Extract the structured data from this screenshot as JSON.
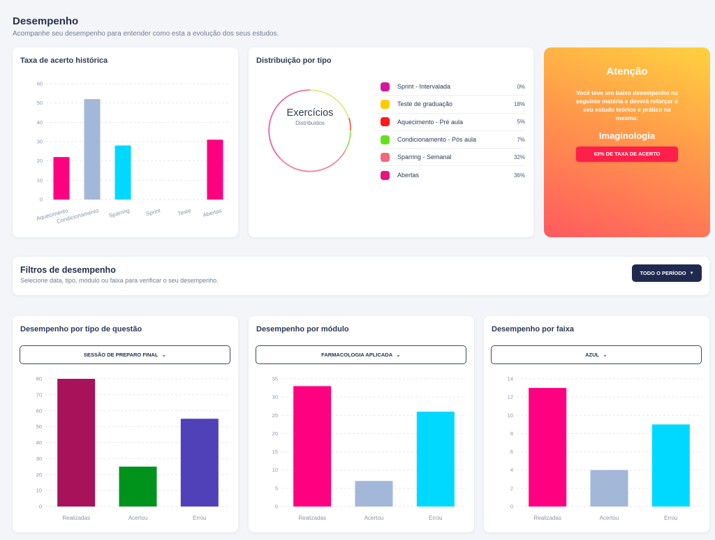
{
  "page": {
    "title": "Desempenho",
    "subtitle": "Acompanhe seu desempenho para entender como esta a evolução dos seus estudos."
  },
  "history": {
    "title": "Taxa de acerto histórica"
  },
  "distribution": {
    "title": "Distribuição por tipo",
    "center_label": "Exercícios",
    "center_sub": "Distribuidos",
    "items": [
      {
        "name": "Sprint - Intervalada",
        "pct": "0%",
        "color": "#d1189e"
      },
      {
        "name": "Teste de graduação",
        "pct": "18%",
        "color": "#ffcc00"
      },
      {
        "name": "Aquecimento - Pré aula",
        "pct": "5%",
        "color": "#ff1a1a"
      },
      {
        "name": "Condicionamento - Pós aula",
        "pct": "7%",
        "color": "#66e01b"
      },
      {
        "name": "Sparring - Semanal",
        "pct": "32%",
        "color": "#f2687c"
      },
      {
        "name": "Abertas",
        "pct": "36%",
        "color": "#e6167f"
      }
    ]
  },
  "alert": {
    "title": "Atenção",
    "text": "Você teve um baixo desempenho na seguinte matéria e deverá reforçar o seu estudo teórico e prático na mesma:",
    "subject": "Imaginologia",
    "badge": "63% DE TAXA DE ACERTO"
  },
  "filters": {
    "title": "Filtros de desempenho",
    "subtitle": "Selecione data, tipo, módulo ou faixa para verificar o seu desempenho.",
    "period_label": "TODO O PERÍODO"
  },
  "by_type": {
    "title": "Desempenho por tipo de questão",
    "select": "SESSÃO DE PREPARO FINAL"
  },
  "by_module": {
    "title": "Desempenho por módulo",
    "select": "FARMACOLOGIA APLICADA"
  },
  "by_belt": {
    "title": "Desempenho por faixa",
    "select": "AZUL"
  },
  "chart_data": [
    {
      "id": "history",
      "type": "bar",
      "title": "Taxa de acerto histórica",
      "categories": [
        "Aquecimento",
        "Condicionamento",
        "Sparring",
        "Sprint",
        "Teste",
        "Abertas"
      ],
      "values": [
        22,
        52,
        28,
        0,
        0,
        31
      ],
      "colors": [
        "#ff0080",
        "#a3b7d8",
        "#00d9ff",
        "#ff0080",
        "#ff0080",
        "#ff0080"
      ],
      "ylim": [
        0,
        60
      ],
      "yticks": [
        0,
        10,
        20,
        30,
        40,
        50,
        60
      ],
      "grid": true
    },
    {
      "id": "by_type",
      "type": "bar",
      "title": "Desempenho por tipo de questão",
      "categories": [
        "Realizadas",
        "Acertou",
        "Errou"
      ],
      "values": [
        80,
        25,
        55
      ],
      "colors": [
        "#a8125a",
        "#00931c",
        "#5141b8"
      ],
      "ylim": [
        0,
        80
      ],
      "yticks": [
        0,
        10,
        20,
        30,
        40,
        50,
        60,
        70,
        80
      ],
      "grid": true
    },
    {
      "id": "by_module",
      "type": "bar",
      "title": "Desempenho por módulo",
      "categories": [
        "Realizadas",
        "Acertou",
        "Errou"
      ],
      "values": [
        33,
        7,
        26
      ],
      "colors": [
        "#ff0080",
        "#a3b7d8",
        "#00d9ff"
      ],
      "ylim": [
        0,
        35
      ],
      "yticks": [
        0,
        5,
        10,
        15,
        20,
        25,
        30,
        35
      ],
      "grid": true
    },
    {
      "id": "by_belt",
      "type": "bar",
      "title": "Desempenho por faixa",
      "categories": [
        "Realizadas",
        "Acertou",
        "Errou"
      ],
      "values": [
        13,
        4,
        9
      ],
      "colors": [
        "#ff0080",
        "#a3b7d8",
        "#00d9ff"
      ],
      "ylim": [
        0,
        14
      ],
      "yticks": [
        0,
        2,
        4,
        6,
        8,
        10,
        12,
        14
      ],
      "grid": true
    }
  ]
}
